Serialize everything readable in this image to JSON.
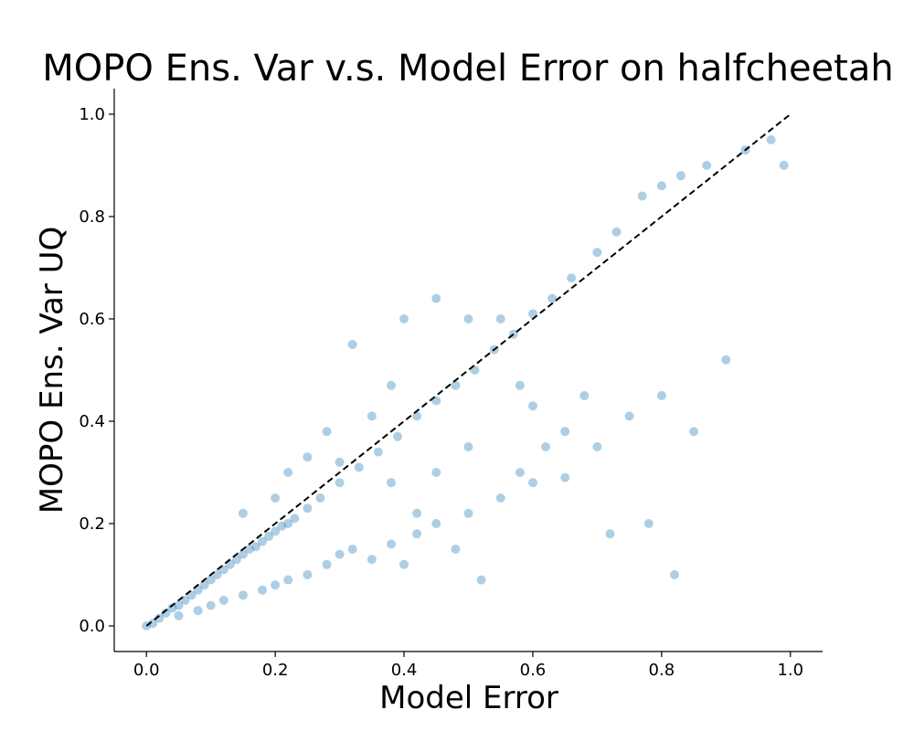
{
  "chart_data": {
    "type": "scatter",
    "title": "MOPO Ens. Var v.s. Model Error on halfcheetah",
    "xlabel": "Model Error",
    "ylabel": "MOPO Ens. Var UQ",
    "xlim": [
      -0.05,
      1.05
    ],
    "ylim": [
      -0.05,
      1.05
    ],
    "x_ticks": [
      "0.0",
      "0.2",
      "0.4",
      "0.6",
      "0.8",
      "1.0"
    ],
    "y_ticks": [
      "0.0",
      "0.2",
      "0.4",
      "0.6",
      "0.8",
      "1.0"
    ],
    "grid": false,
    "marker_color": "#1f77b4",
    "marker_alpha": 0.06,
    "reference_line": {
      "style": "dashed",
      "color": "#000000",
      "x": [
        0,
        1
      ],
      "y": [
        0,
        1
      ]
    },
    "series": [
      {
        "values": [
          [
            0.0,
            0.0
          ],
          [
            0.01,
            0.005
          ],
          [
            0.02,
            0.015
          ],
          [
            0.03,
            0.025
          ],
          [
            0.04,
            0.035
          ],
          [
            0.05,
            0.04
          ],
          [
            0.06,
            0.05
          ],
          [
            0.07,
            0.06
          ],
          [
            0.08,
            0.07
          ],
          [
            0.09,
            0.08
          ],
          [
            0.1,
            0.09
          ],
          [
            0.11,
            0.1
          ],
          [
            0.12,
            0.11
          ],
          [
            0.13,
            0.12
          ],
          [
            0.14,
            0.13
          ],
          [
            0.15,
            0.14
          ],
          [
            0.16,
            0.15
          ],
          [
            0.17,
            0.155
          ],
          [
            0.18,
            0.165
          ],
          [
            0.19,
            0.175
          ],
          [
            0.2,
            0.185
          ],
          [
            0.21,
            0.195
          ],
          [
            0.22,
            0.2
          ],
          [
            0.23,
            0.21
          ],
          [
            0.25,
            0.23
          ],
          [
            0.27,
            0.25
          ],
          [
            0.3,
            0.28
          ],
          [
            0.33,
            0.31
          ],
          [
            0.36,
            0.34
          ],
          [
            0.39,
            0.37
          ],
          [
            0.42,
            0.41
          ],
          [
            0.45,
            0.44
          ],
          [
            0.48,
            0.47
          ],
          [
            0.51,
            0.5
          ],
          [
            0.54,
            0.54
          ],
          [
            0.57,
            0.57
          ],
          [
            0.6,
            0.61
          ],
          [
            0.63,
            0.64
          ],
          [
            0.66,
            0.68
          ],
          [
            0.7,
            0.73
          ],
          [
            0.73,
            0.77
          ],
          [
            0.77,
            0.84
          ],
          [
            0.8,
            0.86
          ],
          [
            0.83,
            0.88
          ],
          [
            0.87,
            0.9
          ],
          [
            0.93,
            0.93
          ],
          [
            0.97,
            0.95
          ],
          [
            0.99,
            0.9
          ],
          [
            0.05,
            0.02
          ],
          [
            0.08,
            0.03
          ],
          [
            0.1,
            0.04
          ],
          [
            0.12,
            0.05
          ],
          [
            0.15,
            0.06
          ],
          [
            0.18,
            0.07
          ],
          [
            0.2,
            0.08
          ],
          [
            0.22,
            0.09
          ],
          [
            0.25,
            0.1
          ],
          [
            0.28,
            0.12
          ],
          [
            0.3,
            0.14
          ],
          [
            0.32,
            0.15
          ],
          [
            0.35,
            0.13
          ],
          [
            0.38,
            0.16
          ],
          [
            0.4,
            0.12
          ],
          [
            0.42,
            0.18
          ],
          [
            0.45,
            0.2
          ],
          [
            0.48,
            0.15
          ],
          [
            0.5,
            0.22
          ],
          [
            0.52,
            0.09
          ],
          [
            0.55,
            0.25
          ],
          [
            0.58,
            0.3
          ],
          [
            0.6,
            0.28
          ],
          [
            0.62,
            0.35
          ],
          [
            0.65,
            0.38
          ],
          [
            0.68,
            0.45
          ],
          [
            0.7,
            0.35
          ],
          [
            0.72,
            0.18
          ],
          [
            0.75,
            0.41
          ],
          [
            0.8,
            0.45
          ],
          [
            0.85,
            0.38
          ],
          [
            0.9,
            0.52
          ],
          [
            0.15,
            0.22
          ],
          [
            0.2,
            0.25
          ],
          [
            0.22,
            0.3
          ],
          [
            0.25,
            0.33
          ],
          [
            0.28,
            0.38
          ],
          [
            0.3,
            0.32
          ],
          [
            0.32,
            0.55
          ],
          [
            0.35,
            0.41
          ],
          [
            0.38,
            0.47
          ],
          [
            0.4,
            0.6
          ],
          [
            0.45,
            0.64
          ],
          [
            0.5,
            0.6
          ],
          [
            0.55,
            0.6
          ],
          [
            0.38,
            0.28
          ],
          [
            0.42,
            0.22
          ],
          [
            0.45,
            0.3
          ],
          [
            0.5,
            0.35
          ],
          [
            0.58,
            0.47
          ],
          [
            0.6,
            0.43
          ],
          [
            0.65,
            0.29
          ],
          [
            0.78,
            0.2
          ],
          [
            0.82,
            0.1
          ]
        ]
      }
    ]
  }
}
